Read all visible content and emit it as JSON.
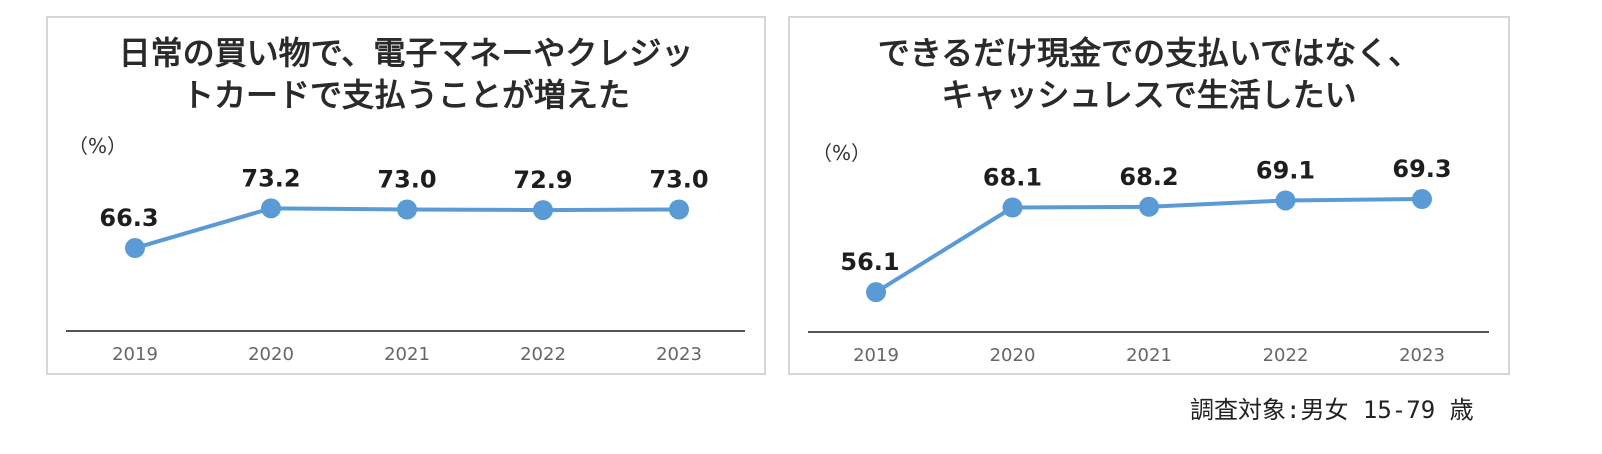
{
  "style": {
    "line_color": "#5b9bd5",
    "axis_color": "#555555",
    "panel_border": "#d6d6d6"
  },
  "chart_data": [
    {
      "type": "line",
      "title_lines": [
        "日常の買い物で、電子マネーやクレジッ",
        "トカードで支払うことが増えた"
      ],
      "unit_label": "（%）",
      "categories": [
        "2019",
        "2020",
        "2021",
        "2022",
        "2023"
      ],
      "values": [
        66.3,
        73.2,
        73.0,
        72.9,
        73.0
      ],
      "value_labels": [
        "66.3",
        "73.2",
        "73.0",
        "72.9",
        "73.0"
      ],
      "ylim": [
        55,
        75
      ],
      "grid": false,
      "legend": "none"
    },
    {
      "type": "line",
      "title_lines": [
        "できるだけ現金での支払いではなく、",
        "キャッシュレスで生活したい"
      ],
      "unit_label": "（%）",
      "categories": [
        "2019",
        "2020",
        "2021",
        "2022",
        "2023"
      ],
      "values": [
        56.1,
        68.1,
        68.2,
        69.1,
        69.3
      ],
      "value_labels": [
        "56.1",
        "68.1",
        "68.2",
        "69.1",
        "69.3"
      ],
      "ylim": [
        53,
        72
      ],
      "grid": false,
      "legend": "none"
    }
  ],
  "footnote": "調査対象:男女 15-79 歳"
}
